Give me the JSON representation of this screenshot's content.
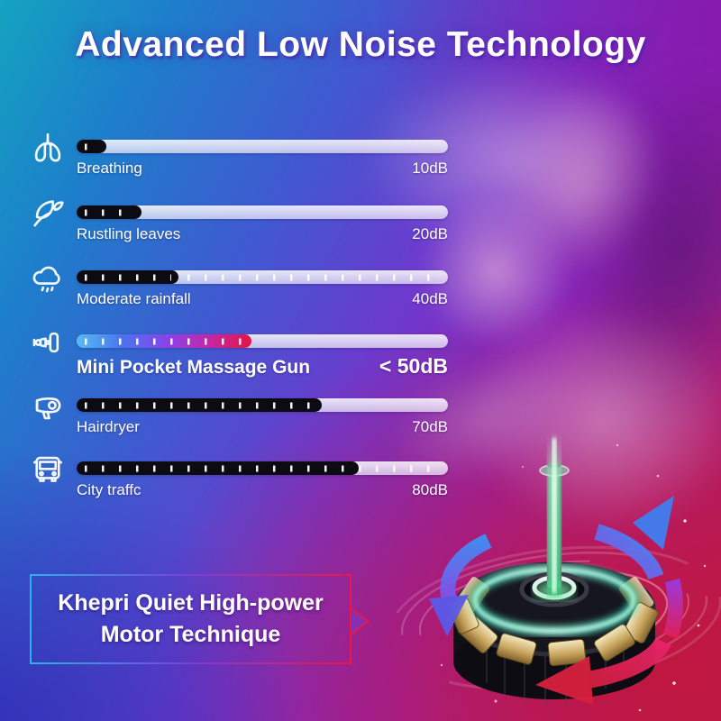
{
  "title": "Advanced Low Noise Technology",
  "callout": {
    "line1": "Khepri Quiet High-power",
    "line2": "Motor Technique"
  },
  "colors": {
    "background_topleft": "#14a3c0",
    "background_bottomleft": "#312bb4",
    "background_bottomright": "#c1163e",
    "background_topright": "#8618ac",
    "bar_track": "#f0edf8",
    "bar_fill_dark": "#0b0b11",
    "highlight_gradient": [
      "#55bbf2",
      "#4b74ef",
      "#8a42ea",
      "#c527a4",
      "#e31544"
    ],
    "callout_border_left": "#2bb3e8",
    "callout_border_right": "#ea1747",
    "motor_beam": "#6ef0a8",
    "motor_ring": "#4fe8c4"
  },
  "chart_data": {
    "type": "bar",
    "title": "Noise level comparison",
    "unit": "dB",
    "xlim": [
      0,
      105
    ],
    "legend_position": "none",
    "grid": false,
    "rows": [
      {
        "label": "Breathing",
        "value_text": "10dB",
        "db": 10,
        "fill_pct": 8,
        "icon": "lungs-icon",
        "highlight": false
      },
      {
        "label": "Rustling leaves",
        "value_text": "20dB",
        "db": 20,
        "fill_pct": 17.5,
        "icon": "leaves-icon",
        "highlight": false
      },
      {
        "label": "Moderate rainfall",
        "value_text": "40dB",
        "db": 40,
        "fill_pct": 27.5,
        "icon": "rain-cloud-icon",
        "highlight": false
      },
      {
        "label": "Mini Pocket Massage Gun",
        "value_text": "< 50dB",
        "db": 50,
        "fill_pct": 47,
        "icon": "massage-gun-icon",
        "highlight": true
      },
      {
        "label": "Hairdryer",
        "value_text": "70dB",
        "db": 70,
        "fill_pct": 66,
        "icon": "hairdryer-icon",
        "highlight": false
      },
      {
        "label": "City traffc",
        "value_text": "80dB",
        "db": 80,
        "fill_pct": 76,
        "icon": "bus-icon",
        "highlight": false
      }
    ]
  }
}
